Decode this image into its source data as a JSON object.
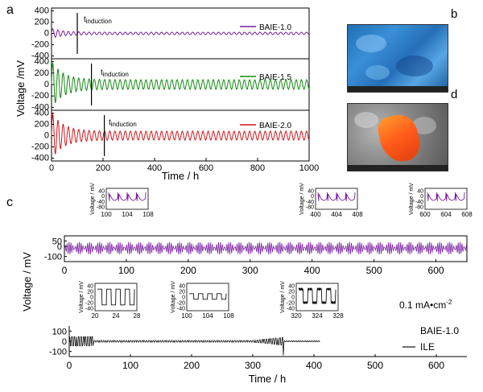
{
  "panel_labels": {
    "a": "a",
    "b": "b",
    "c": "c",
    "d": "d"
  },
  "induction_label": "t",
  "induction_sub": "induction",
  "mA_unit": "0.1 mA•cm",
  "mA_exp": "-2",
  "colors": {
    "purple": "#7b1fa2",
    "green": "#138a13",
    "red": "#d0171b",
    "black": "#111111"
  },
  "chart_data": [
    {
      "type": "line",
      "id": "panel-a",
      "xlabel": "Time / h",
      "ylabel": "Voltage /mV",
      "xlim": [
        0,
        1000
      ],
      "xticks": [
        "0",
        "200",
        "400",
        "600",
        "800",
        "1000"
      ],
      "yticks": [
        "400",
        "200",
        "0",
        "-200",
        "-400"
      ],
      "series": [
        {
          "name": "BAIE-1.0",
          "color": "#7b1fa2",
          "initial_amplitude_mV": 90,
          "steady_amplitude_mV": 22,
          "induction_time_h": 100
        },
        {
          "name": "BAIE-1.5",
          "color": "#138a13",
          "initial_amplitude_mV": 420,
          "steady_amplitude_mV": 85,
          "induction_time_h": 155
        },
        {
          "name": "BAIE-2.0",
          "color": "#d0171b",
          "initial_amplitude_mV": 430,
          "steady_amplitude_mV": 80,
          "induction_time_h": 205
        }
      ]
    },
    {
      "type": "line",
      "id": "panel-c-top",
      "xlabel": "",
      "ylabel": "Voltage / mV",
      "xlim": [
        0,
        650
      ],
      "ylim": [
        -150,
        100
      ],
      "xticks": [
        "0",
        "100",
        "200",
        "300",
        "400",
        "500",
        "600"
      ],
      "yticks": [
        "50",
        "0",
        "-100"
      ],
      "series": [
        {
          "name": "BAIE-1.0",
          "color": "#7b1fa2",
          "amplitude_mV": 60
        }
      ],
      "insets": [
        {
          "xticks": [
            "100",
            "104",
            "108"
          ],
          "ylabel": "Voltage / mV",
          "yticks": [
            "40",
            "0",
            "-40",
            "-80"
          ]
        },
        {
          "xticks": [
            "400",
            "404",
            "408"
          ],
          "ylabel": "Voltage / mV",
          "yticks": [
            "40",
            "0",
            "-40",
            "-80"
          ]
        },
        {
          "xticks": [
            "600",
            "604",
            "608"
          ],
          "ylabel": "Voltage / mV",
          "yticks": [
            "40",
            "0",
            "-40",
            "-80"
          ]
        }
      ]
    },
    {
      "type": "line",
      "id": "panel-c-bottom",
      "xlabel": "Time / h",
      "ylabel": "",
      "xlim": [
        0,
        650
      ],
      "ylim": [
        -150,
        150
      ],
      "xticks": [
        "0",
        "100",
        "200",
        "300",
        "400",
        "500",
        "600"
      ],
      "yticks": [
        "100",
        "0",
        "-100"
      ],
      "series": [
        {
          "name": "ILE",
          "color": "#111111",
          "initial_amplitude_mV": 45,
          "steady_amplitude_mV": 8,
          "failure_time_h": 350
        }
      ],
      "legend": [
        "BAIE-1.0",
        "ILE"
      ],
      "insets": [
        {
          "xticks": [
            "20",
            "24",
            "28"
          ],
          "ylabel": "Voltage / mV",
          "yticks": [
            "40",
            "20",
            "0",
            "-20",
            "-40"
          ]
        },
        {
          "xticks": [
            "100",
            "104",
            "108"
          ],
          "ylabel": "Voltage / mV",
          "yticks": [
            "40",
            "20",
            "0",
            "-20",
            "-40"
          ]
        },
        {
          "xticks": [
            "320",
            "324",
            "328"
          ],
          "ylabel": "Voltage / mV",
          "yticks": [
            "40",
            "20",
            "0",
            "-20",
            "-40"
          ]
        }
      ]
    }
  ]
}
